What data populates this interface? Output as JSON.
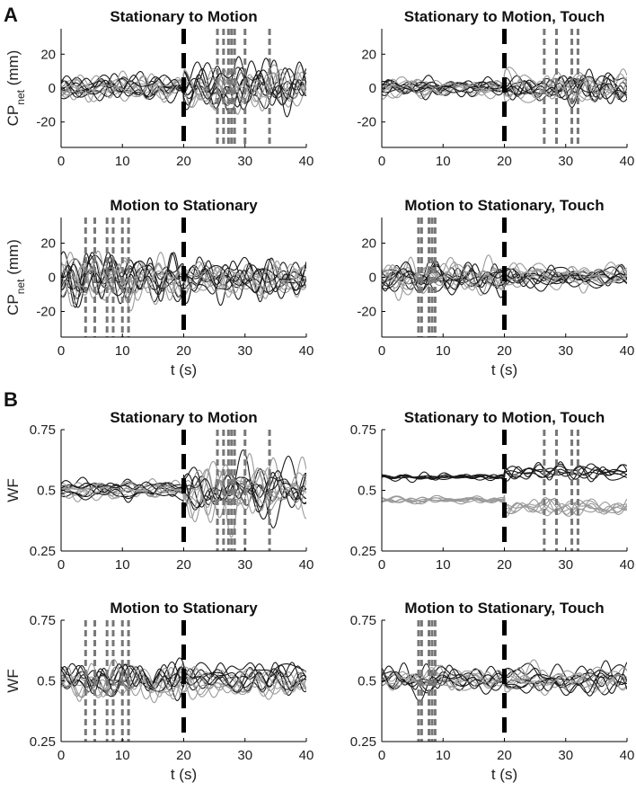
{
  "figure": {
    "panel_letters": [
      "A",
      "B"
    ],
    "ylabel_cp": "CP",
    "ylabel_cp_sub": "net",
    "ylabel_cp_unit": " (mm)",
    "ylabel_wf": "WF",
    "xlabel": "t (s)"
  },
  "colors": {
    "axis": "#000000",
    "transition": "#000000",
    "event": "#777777",
    "traces_dark": "#1a1a1a",
    "traces_light": "#9a9a9a"
  },
  "chart_data": [
    {
      "type": "line",
      "title": "Stationary to Motion",
      "ylabel": "CPnet (mm)",
      "xlabel": "",
      "xlim": [
        0,
        40
      ],
      "ylim": [
        -35,
        35
      ],
      "xticks": [
        0,
        10,
        20,
        30,
        40
      ],
      "yticks": [
        -20,
        0,
        20
      ],
      "transition": 20,
      "events": [
        25.5,
        26.5,
        27.3,
        27.8,
        28.3,
        30,
        34
      ],
      "series_note_pre_amp": 6,
      "post_amp": 12,
      "n_series": 16
    },
    {
      "type": "line",
      "title": "Stationary to Motion, Touch",
      "ylabel": "",
      "xlabel": "",
      "xlim": [
        0,
        40
      ],
      "ylim": [
        -35,
        35
      ],
      "xticks": [
        0,
        10,
        20,
        30,
        40
      ],
      "yticks": [
        -20,
        0,
        20
      ],
      "transition": 20,
      "events": [
        26.5,
        28.5,
        31,
        32
      ],
      "pre_amp": 4,
      "post_amp": 7,
      "n_series": 16
    },
    {
      "type": "line",
      "title": "Motion to Stationary",
      "ylabel": "CPnet (mm)",
      "xlabel": "t (s)",
      "xlim": [
        0,
        40
      ],
      "ylim": [
        -35,
        35
      ],
      "xticks": [
        0,
        10,
        20,
        30,
        40
      ],
      "yticks": [
        -20,
        0,
        20
      ],
      "transition": 20,
      "events": [
        4,
        5.5,
        7.5,
        8.5,
        10,
        11
      ],
      "pre_amp": 12,
      "post_amp": 9,
      "n_series": 16
    },
    {
      "type": "line",
      "title": "Motion to Stationary, Touch",
      "ylabel": "",
      "xlabel": "t (s)",
      "xlim": [
        0,
        40
      ],
      "ylim": [
        -35,
        35
      ],
      "xticks": [
        0,
        10,
        20,
        30,
        40
      ],
      "yticks": [
        -20,
        0,
        20
      ],
      "transition": 20,
      "events": [
        6,
        6.5,
        7.7,
        8.2,
        8.7
      ],
      "pre_amp": 7,
      "post_amp": 5,
      "n_series": 16
    },
    {
      "type": "line",
      "title": "Stationary to Motion",
      "ylabel": "WF",
      "xlabel": "",
      "xlim": [
        0,
        40
      ],
      "ylim": [
        0.25,
        0.75
      ],
      "xticks": [
        0,
        10,
        20,
        30,
        40
      ],
      "yticks": [
        0.25,
        0.5,
        0.75
      ],
      "transition": 20,
      "events": [
        25.5,
        26.5,
        27.3,
        27.8,
        28.3,
        30,
        34
      ],
      "pre_amp": 0.025,
      "post_amp": 0.09,
      "n_series": 14
    },
    {
      "type": "line",
      "title": "Stationary to Motion, Touch",
      "ylabel": "",
      "xlabel": "",
      "xlim": [
        0,
        40
      ],
      "ylim": [
        0.25,
        0.75
      ],
      "xticks": [
        0,
        10,
        20,
        30,
        40
      ],
      "yticks": [
        0.25,
        0.5,
        0.75
      ],
      "transition": 20,
      "events": [
        26.5,
        28.5,
        31,
        32
      ],
      "pre_amp": 0.012,
      "post_amp": 0.03,
      "n_series": 14
    },
    {
      "type": "line",
      "title": "Motion to Stationary",
      "ylabel": "WF",
      "xlabel": "t (s)",
      "xlim": [
        0,
        40
      ],
      "ylim": [
        0.25,
        0.75
      ],
      "xticks": [
        0,
        10,
        20,
        30,
        40
      ],
      "yticks": [
        0.25,
        0.5,
        0.75
      ],
      "transition": 20,
      "events": [
        4,
        5.5,
        7.5,
        8.5,
        10,
        11
      ],
      "pre_amp": 0.06,
      "post_amp": 0.05,
      "n_series": 14
    },
    {
      "type": "line",
      "title": "Motion to Stationary, Touch",
      "ylabel": "",
      "xlabel": "t (s)",
      "xlim": [
        0,
        40
      ],
      "ylim": [
        0.25,
        0.75
      ],
      "xticks": [
        0,
        10,
        20,
        30,
        40
      ],
      "yticks": [
        0.25,
        0.5,
        0.75
      ],
      "transition": 20,
      "events": [
        6,
        6.5,
        7.7,
        8.2,
        8.7
      ],
      "pre_amp": 0.04,
      "post_amp": 0.035,
      "n_series": 14
    }
  ]
}
